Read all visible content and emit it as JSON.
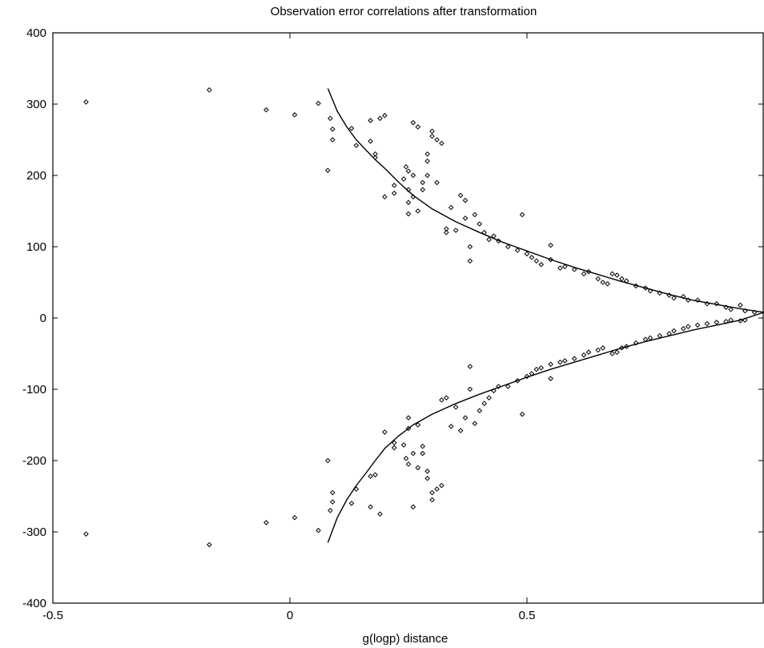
{
  "chart_data": {
    "type": "scatter",
    "title": "Observation error correlations after transformation",
    "xlabel": "g(logp) distance",
    "ylabel": "",
    "xlim": [
      -0.5,
      1.0
    ],
    "ylim": [
      -400,
      400
    ],
    "x_ticks": [
      -0.5,
      0,
      0.5
    ],
    "x_tick_labels": [
      "-0.5",
      "0",
      "0.5"
    ],
    "y_ticks": [
      -400,
      -300,
      -200,
      -100,
      0,
      100,
      200,
      300,
      400
    ],
    "y_tick_labels": [
      "-400",
      "-300",
      "-200",
      "-100",
      "0",
      "100",
      "200",
      "300",
      "400"
    ],
    "grid": false,
    "series": [
      {
        "kind": "points",
        "points": [
          [
            -0.43,
            303
          ],
          [
            -0.17,
            320
          ],
          [
            -0.05,
            292
          ],
          [
            0.01,
            285
          ],
          [
            0.06,
            301
          ],
          [
            0.08,
            207
          ],
          [
            0.085,
            280
          ],
          [
            0.09,
            265
          ],
          [
            0.09,
            250
          ],
          [
            0.13,
            266
          ],
          [
            0.14,
            242
          ],
          [
            0.17,
            248
          ],
          [
            0.17,
            277
          ],
          [
            0.18,
            230
          ],
          [
            0.18,
            225
          ],
          [
            0.19,
            280
          ],
          [
            0.2,
            284
          ],
          [
            0.2,
            170
          ],
          [
            0.22,
            186
          ],
          [
            0.22,
            175
          ],
          [
            0.24,
            195
          ],
          [
            0.245,
            212
          ],
          [
            0.25,
            206
          ],
          [
            0.25,
            180
          ],
          [
            0.25,
            162
          ],
          [
            0.25,
            146
          ],
          [
            0.26,
            170
          ],
          [
            0.26,
            200
          ],
          [
            0.26,
            274
          ],
          [
            0.27,
            268
          ],
          [
            0.27,
            150
          ],
          [
            0.28,
            180
          ],
          [
            0.28,
            190
          ],
          [
            0.29,
            230
          ],
          [
            0.29,
            220
          ],
          [
            0.29,
            200
          ],
          [
            0.3,
            262
          ],
          [
            0.3,
            255
          ],
          [
            0.31,
            250
          ],
          [
            0.31,
            190
          ],
          [
            0.32,
            245
          ],
          [
            0.33,
            125
          ],
          [
            0.33,
            120
          ],
          [
            0.34,
            155
          ],
          [
            0.35,
            123
          ],
          [
            0.36,
            172
          ],
          [
            0.37,
            140
          ],
          [
            0.37,
            165
          ],
          [
            0.38,
            80
          ],
          [
            0.38,
            100
          ],
          [
            0.39,
            145
          ],
          [
            0.4,
            132
          ],
          [
            0.41,
            120
          ],
          [
            0.42,
            110
          ],
          [
            0.43,
            115
          ],
          [
            0.44,
            108
          ],
          [
            0.46,
            100
          ],
          [
            0.48,
            95
          ],
          [
            0.49,
            145
          ],
          [
            0.5,
            90
          ],
          [
            0.51,
            85
          ],
          [
            0.52,
            80
          ],
          [
            0.53,
            75
          ],
          [
            0.55,
            102
          ],
          [
            0.55,
            82
          ],
          [
            0.57,
            70
          ],
          [
            0.58,
            72
          ],
          [
            0.6,
            68
          ],
          [
            0.62,
            62
          ],
          [
            0.63,
            65
          ],
          [
            0.65,
            55
          ],
          [
            0.66,
            50
          ],
          [
            0.67,
            48
          ],
          [
            0.68,
            62
          ],
          [
            0.69,
            60
          ],
          [
            0.7,
            55
          ],
          [
            0.71,
            52
          ],
          [
            0.73,
            45
          ],
          [
            0.75,
            42
          ],
          [
            0.76,
            38
          ],
          [
            0.78,
            35
          ],
          [
            0.8,
            32
          ],
          [
            0.81,
            28
          ],
          [
            0.83,
            30
          ],
          [
            0.84,
            25
          ],
          [
            0.86,
            25
          ],
          [
            0.88,
            20
          ],
          [
            0.9,
            20
          ],
          [
            0.92,
            15
          ],
          [
            0.93,
            12
          ],
          [
            0.95,
            18
          ],
          [
            0.96,
            10
          ],
          [
            0.98,
            8
          ],
          [
            -0.43,
            -303
          ],
          [
            -0.17,
            -318
          ],
          [
            -0.05,
            -287
          ],
          [
            0.01,
            -280
          ],
          [
            0.06,
            -298
          ],
          [
            0.08,
            -200
          ],
          [
            0.085,
            -270
          ],
          [
            0.09,
            -258
          ],
          [
            0.09,
            -245
          ],
          [
            0.13,
            -260
          ],
          [
            0.14,
            -240
          ],
          [
            0.17,
            -222
          ],
          [
            0.17,
            -265
          ],
          [
            0.18,
            -220
          ],
          [
            0.19,
            -275
          ],
          [
            0.2,
            -160
          ],
          [
            0.22,
            -175
          ],
          [
            0.22,
            -182
          ],
          [
            0.24,
            -178
          ],
          [
            0.245,
            -197
          ],
          [
            0.25,
            -205
          ],
          [
            0.25,
            -140
          ],
          [
            0.25,
            -155
          ],
          [
            0.26,
            -190
          ],
          [
            0.26,
            -265
          ],
          [
            0.27,
            -150
          ],
          [
            0.27,
            -210
          ],
          [
            0.28,
            -180
          ],
          [
            0.28,
            -190
          ],
          [
            0.29,
            -215
          ],
          [
            0.29,
            -225
          ],
          [
            0.3,
            -255
          ],
          [
            0.3,
            -245
          ],
          [
            0.31,
            -240
          ],
          [
            0.32,
            -235
          ],
          [
            0.32,
            -115
          ],
          [
            0.33,
            -112
          ],
          [
            0.34,
            -152
          ],
          [
            0.35,
            -125
          ],
          [
            0.36,
            -158
          ],
          [
            0.37,
            -140
          ],
          [
            0.38,
            -68
          ],
          [
            0.38,
            -100
          ],
          [
            0.39,
            -148
          ],
          [
            0.4,
            -130
          ],
          [
            0.41,
            -120
          ],
          [
            0.42,
            -112
          ],
          [
            0.43,
            -102
          ],
          [
            0.44,
            -96
          ],
          [
            0.46,
            -96
          ],
          [
            0.48,
            -88
          ],
          [
            0.49,
            -135
          ],
          [
            0.5,
            -82
          ],
          [
            0.51,
            -78
          ],
          [
            0.52,
            -72
          ],
          [
            0.53,
            -70
          ],
          [
            0.55,
            -85
          ],
          [
            0.55,
            -65
          ],
          [
            0.57,
            -62
          ],
          [
            0.58,
            -60
          ],
          [
            0.6,
            -57
          ],
          [
            0.62,
            -52
          ],
          [
            0.63,
            -48
          ],
          [
            0.65,
            -45
          ],
          [
            0.66,
            -42
          ],
          [
            0.68,
            -50
          ],
          [
            0.69,
            -48
          ],
          [
            0.7,
            -42
          ],
          [
            0.71,
            -40
          ],
          [
            0.73,
            -35
          ],
          [
            0.75,
            -30
          ],
          [
            0.76,
            -28
          ],
          [
            0.78,
            -25
          ],
          [
            0.8,
            -22
          ],
          [
            0.81,
            -18
          ],
          [
            0.83,
            -15
          ],
          [
            0.84,
            -12
          ],
          [
            0.86,
            -10
          ],
          [
            0.88,
            -8
          ],
          [
            0.9,
            -6
          ],
          [
            0.92,
            -5
          ],
          [
            0.93,
            -3
          ],
          [
            0.95,
            -4
          ],
          [
            0.96,
            -3
          ]
        ]
      },
      {
        "kind": "curve",
        "x": [
          0.08,
          0.1,
          0.12,
          0.14,
          0.16,
          0.18,
          0.2,
          0.23,
          0.26,
          0.3,
          0.35,
          0.4,
          0.45,
          0.5,
          0.55,
          0.6,
          0.65,
          0.7,
          0.75,
          0.8,
          0.85,
          0.9,
          0.95,
          1.0
        ],
        "y": [
          322,
          290,
          268,
          250,
          236,
          222,
          210,
          190,
          172,
          153,
          135,
          120,
          106,
          94,
          82,
          71,
          61,
          51,
          42,
          33,
          25,
          19,
          13,
          8
        ]
      },
      {
        "kind": "curve",
        "x": [
          0.08,
          0.1,
          0.12,
          0.14,
          0.16,
          0.18,
          0.2,
          0.23,
          0.26,
          0.3,
          0.35,
          0.4,
          0.45,
          0.5,
          0.55,
          0.6,
          0.65,
          0.7,
          0.75,
          0.8,
          0.85,
          0.9,
          0.95,
          1.0
        ],
        "y": [
          -315,
          -280,
          -255,
          -235,
          -218,
          -200,
          -183,
          -165,
          -150,
          -135,
          -120,
          -107,
          -95,
          -83,
          -72,
          -62,
          -52,
          -42,
          -33,
          -25,
          -17,
          -10,
          -3,
          8
        ]
      }
    ]
  }
}
